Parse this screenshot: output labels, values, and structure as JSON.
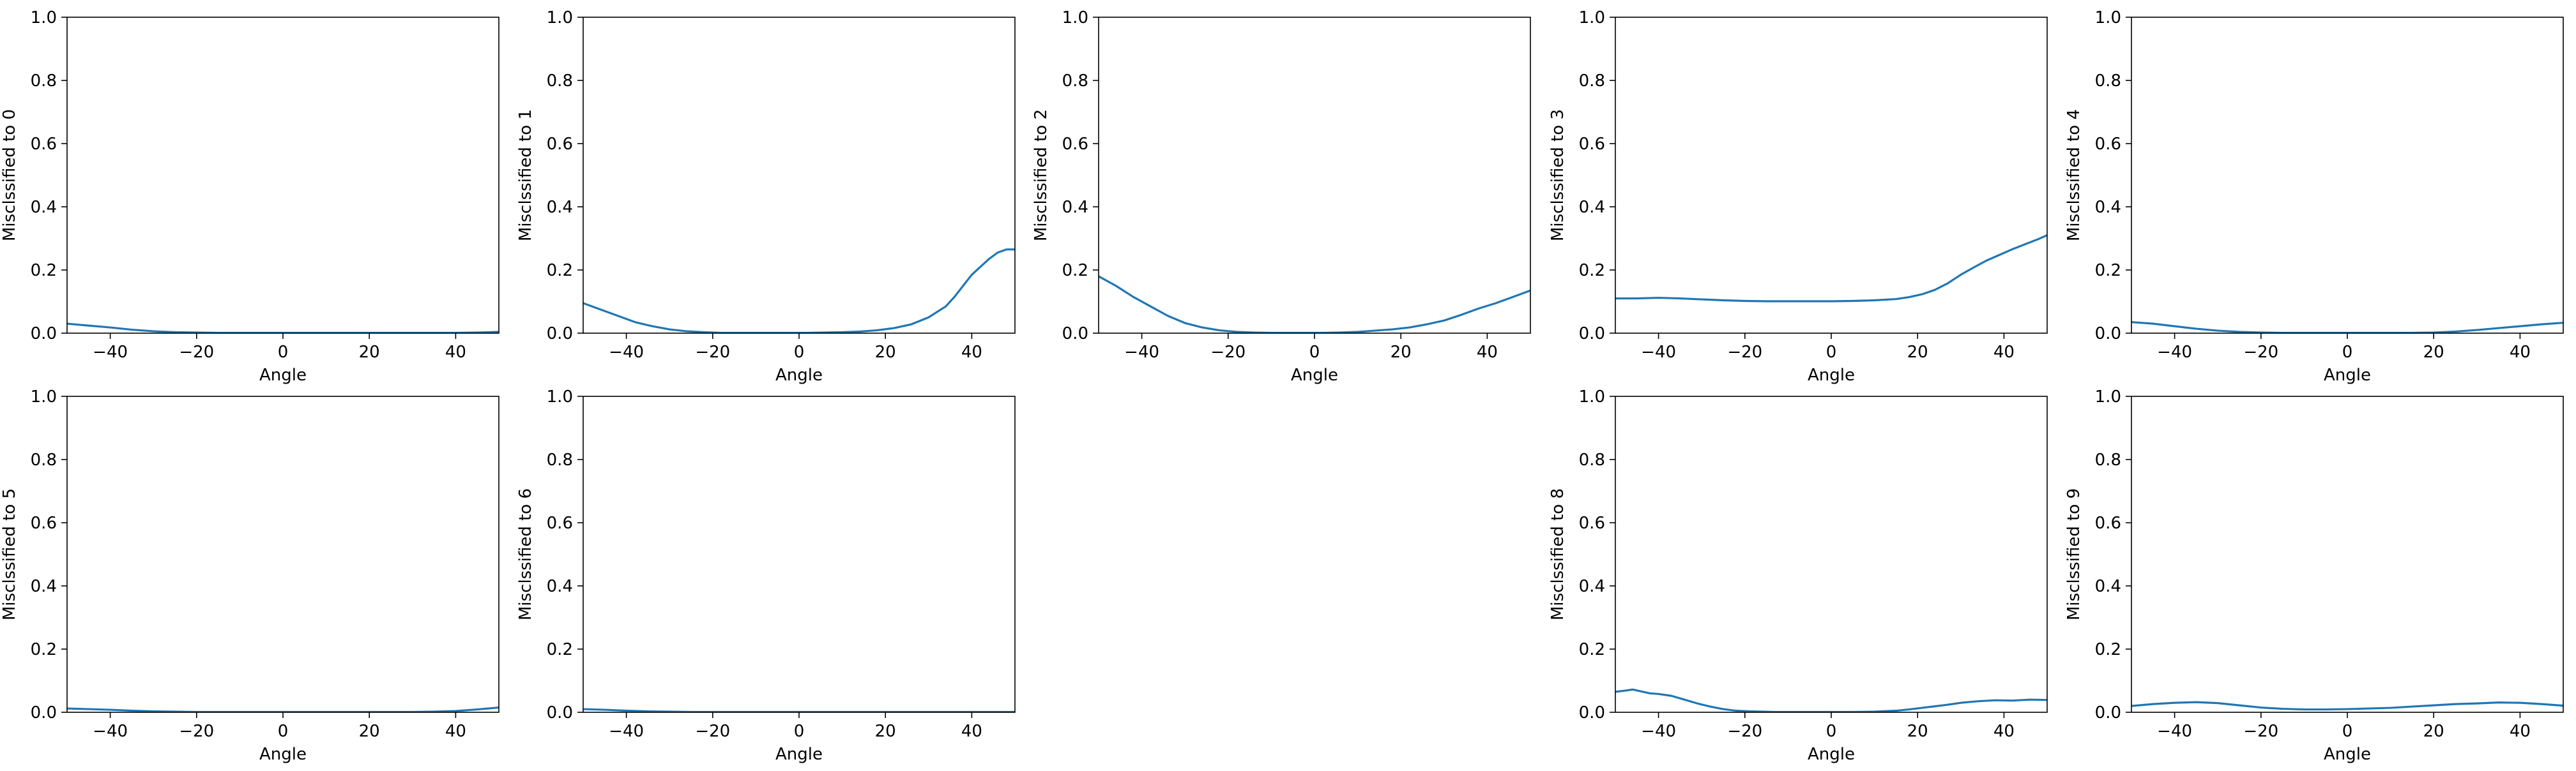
{
  "chart_data": [
    {
      "type": "line",
      "xlabel": "Angle",
      "ylabel": "Misclssified to 0",
      "xlim": [
        -50,
        50
      ],
      "ylim": [
        0,
        1
      ],
      "xticks": [
        -40,
        -20,
        0,
        20,
        40
      ],
      "yticks": [
        0.0,
        0.2,
        0.4,
        0.6,
        0.8,
        1.0
      ],
      "xtick_labels": [
        "−40",
        "−20",
        "0",
        "20",
        "40"
      ],
      "ytick_labels": [
        "0.0",
        "0.2",
        "0.4",
        "0.6",
        "0.8",
        "1.0"
      ],
      "grid": false,
      "series": [
        {
          "color": "#1f77b4",
          "x": [
            -50,
            -45,
            -40,
            -35,
            -30,
            -25,
            -20,
            -15,
            -10,
            -5,
            0,
            5,
            10,
            15,
            20,
            25,
            30,
            35,
            40,
            45,
            50
          ],
          "values": [
            0.03,
            0.024,
            0.018,
            0.011,
            0.006,
            0.003,
            0.002,
            0.001,
            0.001,
            0.001,
            0.001,
            0.001,
            0.001,
            0.001,
            0.001,
            0.001,
            0.001,
            0.001,
            0.001,
            0.002,
            0.004
          ]
        }
      ]
    },
    {
      "type": "line",
      "xlabel": "Angle",
      "ylabel": "Misclssified to 1",
      "xlim": [
        -50,
        50
      ],
      "ylim": [
        0,
        1
      ],
      "xticks": [
        -40,
        -20,
        0,
        20,
        40
      ],
      "yticks": [
        0.0,
        0.2,
        0.4,
        0.6,
        0.8,
        1.0
      ],
      "xtick_labels": [
        "−40",
        "−20",
        "0",
        "20",
        "40"
      ],
      "ytick_labels": [
        "0.0",
        "0.2",
        "0.4",
        "0.6",
        "0.8",
        "1.0"
      ],
      "grid": false,
      "series": [
        {
          "color": "#1f77b4",
          "x": [
            -50,
            -46,
            -42,
            -38,
            -34,
            -30,
            -26,
            -22,
            -18,
            -14,
            -10,
            -6,
            -2,
            2,
            6,
            10,
            14,
            18,
            22,
            26,
            30,
            34,
            36,
            38,
            40,
            42,
            44,
            46,
            48,
            50
          ],
          "values": [
            0.095,
            0.075,
            0.055,
            0.035,
            0.022,
            0.012,
            0.006,
            0.003,
            0.001,
            0.001,
            0.001,
            0.001,
            0.001,
            0.001,
            0.002,
            0.003,
            0.005,
            0.009,
            0.016,
            0.028,
            0.05,
            0.085,
            0.115,
            0.15,
            0.185,
            0.21,
            0.235,
            0.255,
            0.265,
            0.265
          ]
        }
      ]
    },
    {
      "type": "line",
      "xlabel": "Angle",
      "ylabel": "Misclssified to 2",
      "xlim": [
        -50,
        50
      ],
      "ylim": [
        0,
        1
      ],
      "xticks": [
        -40,
        -20,
        0,
        20,
        40
      ],
      "yticks": [
        0.0,
        0.2,
        0.4,
        0.6,
        0.8,
        1.0
      ],
      "xtick_labels": [
        "−40",
        "−20",
        "0",
        "20",
        "40"
      ],
      "ytick_labels": [
        "0.0",
        "0.2",
        "0.4",
        "0.6",
        "0.8",
        "1.0"
      ],
      "grid": false,
      "series": [
        {
          "color": "#1f77b4",
          "x": [
            -50,
            -46,
            -42,
            -38,
            -34,
            -30,
            -26,
            -22,
            -18,
            -14,
            -10,
            -6,
            -2,
            2,
            6,
            10,
            14,
            18,
            22,
            26,
            30,
            34,
            38,
            42,
            46,
            50
          ],
          "values": [
            0.18,
            0.15,
            0.115,
            0.085,
            0.055,
            0.032,
            0.018,
            0.009,
            0.004,
            0.002,
            0.001,
            0.001,
            0.001,
            0.001,
            0.002,
            0.004,
            0.008,
            0.012,
            0.018,
            0.028,
            0.04,
            0.058,
            0.078,
            0.095,
            0.115,
            0.135
          ]
        }
      ]
    },
    {
      "type": "line",
      "xlabel": "Angle",
      "ylabel": "Misclssified to 3",
      "xlim": [
        -50,
        50
      ],
      "ylim": [
        0,
        1
      ],
      "xticks": [
        -40,
        -20,
        0,
        20,
        40
      ],
      "yticks": [
        0.0,
        0.2,
        0.4,
        0.6,
        0.8,
        1.0
      ],
      "xtick_labels": [
        "−40",
        "−20",
        "0",
        "20",
        "40"
      ],
      "ytick_labels": [
        "0.0",
        "0.2",
        "0.4",
        "0.6",
        "0.8",
        "1.0"
      ],
      "grid": false,
      "series": [
        {
          "color": "#1f77b4",
          "x": [
            -50,
            -45,
            -40,
            -35,
            -30,
            -25,
            -20,
            -15,
            -10,
            -5,
            0,
            5,
            10,
            15,
            18,
            21,
            24,
            27,
            30,
            33,
            36,
            39,
            42,
            45,
            48,
            50
          ],
          "values": [
            0.11,
            0.11,
            0.112,
            0.11,
            0.107,
            0.104,
            0.102,
            0.101,
            0.101,
            0.101,
            0.101,
            0.102,
            0.104,
            0.108,
            0.114,
            0.123,
            0.137,
            0.158,
            0.185,
            0.208,
            0.23,
            0.248,
            0.266,
            0.282,
            0.298,
            0.31
          ]
        }
      ]
    },
    {
      "type": "line",
      "xlabel": "Angle",
      "ylabel": "Misclssified to 4",
      "xlim": [
        -50,
        50
      ],
      "ylim": [
        0,
        1
      ],
      "xticks": [
        -40,
        -20,
        0,
        20,
        40
      ],
      "yticks": [
        0.0,
        0.2,
        0.4,
        0.6,
        0.8,
        1.0
      ],
      "xtick_labels": [
        "−40",
        "−20",
        "0",
        "20",
        "40"
      ],
      "ytick_labels": [
        "0.0",
        "0.2",
        "0.4",
        "0.6",
        "0.8",
        "1.0"
      ],
      "grid": false,
      "series": [
        {
          "color": "#1f77b4",
          "x": [
            -50,
            -45,
            -40,
            -35,
            -30,
            -25,
            -20,
            -15,
            -10,
            -5,
            0,
            5,
            10,
            15,
            20,
            25,
            30,
            35,
            40,
            45,
            50
          ],
          "values": [
            0.035,
            0.03,
            0.022,
            0.014,
            0.008,
            0.004,
            0.002,
            0.001,
            0.001,
            0.001,
            0.001,
            0.001,
            0.001,
            0.001,
            0.002,
            0.005,
            0.01,
            0.016,
            0.022,
            0.028,
            0.033
          ]
        }
      ]
    },
    {
      "type": "line",
      "xlabel": "Angle",
      "ylabel": "Misclssified to 5",
      "xlim": [
        -50,
        50
      ],
      "ylim": [
        0,
        1
      ],
      "xticks": [
        -40,
        -20,
        0,
        20,
        40
      ],
      "yticks": [
        0.0,
        0.2,
        0.4,
        0.6,
        0.8,
        1.0
      ],
      "xtick_labels": [
        "−40",
        "−20",
        "0",
        "20",
        "40"
      ],
      "ytick_labels": [
        "0.0",
        "0.2",
        "0.4",
        "0.6",
        "0.8",
        "1.0"
      ],
      "grid": false,
      "series": [
        {
          "color": "#1f77b4",
          "x": [
            -50,
            -45,
            -40,
            -35,
            -30,
            -25,
            -20,
            -15,
            -10,
            -5,
            0,
            5,
            10,
            15,
            20,
            25,
            30,
            35,
            40,
            45,
            50
          ],
          "values": [
            0.012,
            0.01,
            0.008,
            0.005,
            0.003,
            0.002,
            0.001,
            0.001,
            0.001,
            0.001,
            0.001,
            0.001,
            0.001,
            0.001,
            0.001,
            0.001,
            0.001,
            0.002,
            0.004,
            0.009,
            0.015
          ]
        }
      ]
    },
    {
      "type": "line",
      "xlabel": "Angle",
      "ylabel": "Misclssified to 6",
      "xlim": [
        -50,
        50
      ],
      "ylim": [
        0,
        1
      ],
      "xticks": [
        -40,
        -20,
        0,
        20,
        40
      ],
      "yticks": [
        0.0,
        0.2,
        0.4,
        0.6,
        0.8,
        1.0
      ],
      "xtick_labels": [
        "−40",
        "−20",
        "0",
        "20",
        "40"
      ],
      "ytick_labels": [
        "0.0",
        "0.2",
        "0.4",
        "0.6",
        "0.8",
        "1.0"
      ],
      "grid": false,
      "series": [
        {
          "color": "#1f77b4",
          "x": [
            -50,
            -45,
            -40,
            -35,
            -30,
            -25,
            -20,
            -15,
            -10,
            -5,
            0,
            5,
            10,
            15,
            20,
            25,
            30,
            35,
            40,
            45,
            50
          ],
          "values": [
            0.01,
            0.008,
            0.005,
            0.003,
            0.002,
            0.001,
            0.001,
            0.001,
            0.001,
            0.001,
            0.001,
            0.001,
            0.001,
            0.001,
            0.001,
            0.001,
            0.001,
            0.001,
            0.001,
            0.001,
            0.001
          ]
        }
      ]
    },
    {
      "type": "line",
      "xlabel": "Angle",
      "ylabel": "Misclssified to 8",
      "xlim": [
        -50,
        50
      ],
      "ylim": [
        0,
        1
      ],
      "xticks": [
        -40,
        -20,
        0,
        20,
        40
      ],
      "yticks": [
        0.0,
        0.2,
        0.4,
        0.6,
        0.8,
        1.0
      ],
      "xtick_labels": [
        "−40",
        "−20",
        "0",
        "20",
        "40"
      ],
      "ytick_labels": [
        "0.0",
        "0.2",
        "0.4",
        "0.6",
        "0.8",
        "1.0"
      ],
      "grid": false,
      "series": [
        {
          "color": "#1f77b4",
          "x": [
            -50,
            -48,
            -46,
            -44,
            -42,
            -40,
            -37,
            -34,
            -31,
            -28,
            -25,
            -22,
            -19,
            -16,
            -13,
            -10,
            -5,
            0,
            5,
            10,
            15,
            18,
            21,
            24,
            27,
            30,
            34,
            38,
            42,
            46,
            50
          ],
          "values": [
            0.065,
            0.068,
            0.072,
            0.066,
            0.06,
            0.058,
            0.052,
            0.04,
            0.028,
            0.018,
            0.01,
            0.005,
            0.003,
            0.002,
            0.001,
            0.001,
            0.001,
            0.001,
            0.001,
            0.002,
            0.005,
            0.009,
            0.014,
            0.019,
            0.024,
            0.03,
            0.035,
            0.038,
            0.037,
            0.04,
            0.039
          ]
        }
      ]
    },
    {
      "type": "line",
      "xlabel": "Angle",
      "ylabel": "Misclssified to 9",
      "xlim": [
        -50,
        50
      ],
      "ylim": [
        0,
        1
      ],
      "xticks": [
        -40,
        -20,
        0,
        20,
        40
      ],
      "yticks": [
        0.0,
        0.2,
        0.4,
        0.6,
        0.8,
        1.0
      ],
      "xtick_labels": [
        "−40",
        "−20",
        "0",
        "20",
        "40"
      ],
      "ytick_labels": [
        "0.0",
        "0.2",
        "0.4",
        "0.6",
        "0.8",
        "1.0"
      ],
      "grid": false,
      "series": [
        {
          "color": "#1f77b4",
          "x": [
            -50,
            -45,
            -40,
            -35,
            -30,
            -25,
            -20,
            -15,
            -10,
            -5,
            0,
            5,
            10,
            15,
            20,
            25,
            30,
            35,
            40,
            45,
            50
          ],
          "values": [
            0.02,
            0.026,
            0.03,
            0.032,
            0.029,
            0.022,
            0.015,
            0.011,
            0.009,
            0.009,
            0.01,
            0.012,
            0.014,
            0.018,
            0.022,
            0.026,
            0.028,
            0.031,
            0.03,
            0.026,
            0.021
          ]
        }
      ]
    }
  ]
}
